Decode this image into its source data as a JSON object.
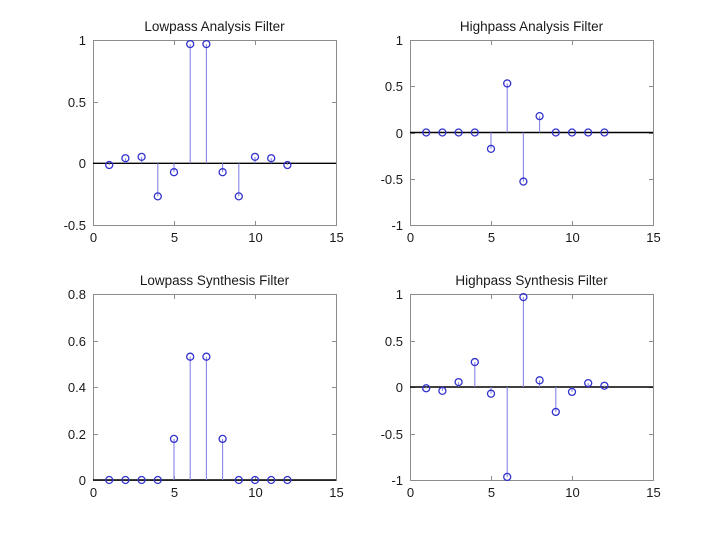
{
  "figure": {
    "background": "#ffffff",
    "description": "MATLAB figure: 2x2 stem plots of a biorthogonal wavelet filter bank"
  },
  "colors": {
    "stem_line": "#8585e8",
    "marker_stroke": "#3232cc",
    "baseline": "#000000",
    "axis": "#8c8c8c",
    "text": "#1a1a1a",
    "background": "#ffffff"
  },
  "chart_data": [
    {
      "id": "lowpass-analysis",
      "type": "stem",
      "title": "Lowpass Analysis Filter",
      "x": [
        1,
        2,
        3,
        4,
        5,
        6,
        7,
        8,
        9,
        10,
        11,
        12
      ],
      "values": [
        -0.0138,
        0.0414,
        0.0525,
        -0.2679,
        -0.0718,
        0.9667,
        0.9667,
        -0.0718,
        -0.2679,
        0.0525,
        0.0414,
        -0.0138
      ],
      "xlim": [
        0,
        15
      ],
      "ylim": [
        -0.5,
        1
      ],
      "xticks": [
        0,
        5,
        10,
        15
      ],
      "xticklabels": [
        "0",
        "5",
        "10",
        "15"
      ],
      "yticks": [
        -0.5,
        0,
        0.5,
        1
      ],
      "yticklabels": [
        "-0.5",
        "0",
        "0.5",
        "1"
      ],
      "baseline": 0,
      "grid": false,
      "legend": "none"
    },
    {
      "id": "highpass-analysis",
      "type": "stem",
      "title": "Highpass Analysis Filter",
      "x": [
        1,
        2,
        3,
        4,
        5,
        6,
        7,
        8,
        9,
        10,
        11,
        12
      ],
      "values": [
        0,
        0,
        0,
        0,
        -0.1768,
        0.5303,
        -0.5303,
        0.1768,
        0,
        0,
        0,
        0
      ],
      "xlim": [
        0,
        15
      ],
      "ylim": [
        -1,
        1
      ],
      "xticks": [
        0,
        5,
        10,
        15
      ],
      "xticklabels": [
        "0",
        "5",
        "10",
        "15"
      ],
      "yticks": [
        -1,
        -0.5,
        0,
        0.5,
        1
      ],
      "yticklabels": [
        "-1",
        "-0.5",
        "0",
        "0.5",
        "1"
      ],
      "baseline": 0,
      "grid": false,
      "legend": "none"
    },
    {
      "id": "lowpass-synthesis",
      "type": "stem",
      "title": "Lowpass Synthesis Filter",
      "x": [
        1,
        2,
        3,
        4,
        5,
        6,
        7,
        8,
        9,
        10,
        11,
        12
      ],
      "values": [
        0,
        0,
        0,
        0,
        0.1768,
        0.5303,
        0.5303,
        0.1768,
        0,
        0,
        0,
        0
      ],
      "xlim": [
        0,
        15
      ],
      "ylim": [
        0,
        0.8
      ],
      "xticks": [
        0,
        5,
        10,
        15
      ],
      "xticklabels": [
        "0",
        "5",
        "10",
        "15"
      ],
      "yticks": [
        0,
        0.2,
        0.4,
        0.6,
        0.8
      ],
      "yticklabels": [
        "0",
        "0.2",
        "0.4",
        "0.6",
        "0.8"
      ],
      "baseline": 0,
      "grid": false,
      "legend": "none"
    },
    {
      "id": "highpass-synthesis",
      "type": "stem",
      "title": "Highpass Synthesis Filter",
      "x": [
        1,
        2,
        3,
        4,
        5,
        6,
        7,
        8,
        9,
        10,
        11,
        12
      ],
      "values": [
        -0.0138,
        -0.0414,
        0.0525,
        0.2679,
        -0.0718,
        -0.9667,
        0.9667,
        0.0718,
        -0.2679,
        -0.0525,
        0.0414,
        0.0138
      ],
      "xlim": [
        0,
        15
      ],
      "ylim": [
        -1,
        1
      ],
      "xticks": [
        0,
        5,
        10,
        15
      ],
      "xticklabels": [
        "0",
        "5",
        "10",
        "15"
      ],
      "yticks": [
        -1,
        -0.5,
        0,
        0.5,
        1
      ],
      "yticklabels": [
        "-1",
        "-0.5",
        "0",
        "0.5",
        "1"
      ],
      "baseline": 0,
      "grid": false,
      "legend": "none"
    }
  ]
}
